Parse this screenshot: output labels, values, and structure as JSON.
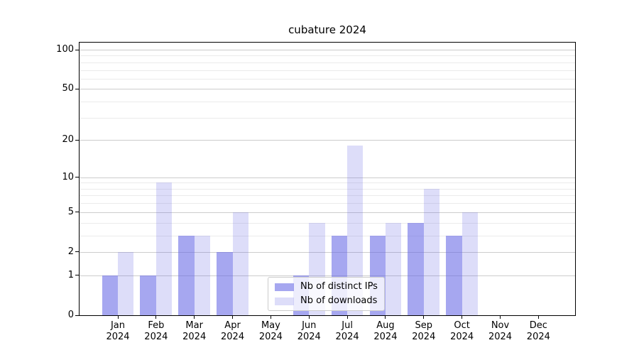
{
  "chart_data": {
    "type": "bar",
    "title": "cubature 2024",
    "x_tick_labels": [
      {
        "month": "Jan",
        "year": "2024"
      },
      {
        "month": "Feb",
        "year": "2024"
      },
      {
        "month": "Mar",
        "year": "2024"
      },
      {
        "month": "Apr",
        "year": "2024"
      },
      {
        "month": "May",
        "year": "2024"
      },
      {
        "month": "Jun",
        "year": "2024"
      },
      {
        "month": "Jul",
        "year": "2024"
      },
      {
        "month": "Aug",
        "year": "2024"
      },
      {
        "month": "Sep",
        "year": "2024"
      },
      {
        "month": "Oct",
        "year": "2024"
      },
      {
        "month": "Nov",
        "year": "2024"
      },
      {
        "month": "Dec",
        "year": "2024"
      }
    ],
    "series": [
      {
        "name": "Nb of distinct IPs",
        "fill": "rgba(99,101,228,0.57)",
        "rendered_hex": "#a6a7ef",
        "values": [
          1,
          1,
          3,
          2,
          0,
          1,
          3,
          3,
          4,
          3,
          0,
          0
        ]
      },
      {
        "name": "Nb of downloads",
        "fill": "rgba(99,101,228,0.22)",
        "rendered_hex": "#dcddf9",
        "values": [
          2,
          9,
          3,
          5,
          0,
          4,
          18,
          4,
          8,
          5,
          0,
          0
        ]
      }
    ],
    "yscale": "log1p",
    "ylim": [
      0,
      100
    ],
    "yticks_major": [
      0,
      1,
      2,
      5,
      10,
      20,
      50,
      100
    ],
    "yticks_minor": [
      3,
      4,
      6,
      7,
      8,
      9,
      30,
      40,
      60,
      70,
      80,
      90
    ],
    "grid": {
      "on": true,
      "major_color": "#cccccc",
      "minor_color": "#ebebeb"
    },
    "axis_color": "#000000",
    "background": "#ffffff",
    "legend": {
      "position": "lower center",
      "entries": [
        "Nb of distinct IPs",
        "Nb of downloads"
      ]
    }
  }
}
